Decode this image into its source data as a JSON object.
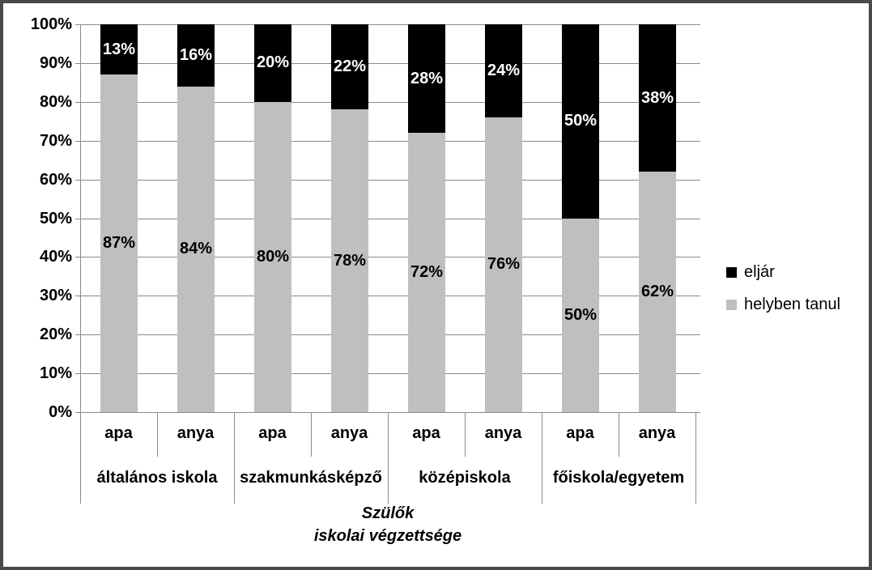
{
  "chart_data": {
    "type": "bar",
    "stacking": "percent",
    "title": "",
    "x_axis_title_lines": [
      "Szülők",
      "iskolai végzettsége"
    ],
    "categories": [
      "általános iskola",
      "szakmunkásképző",
      "középiskola",
      "főiskola/egyetem"
    ],
    "sub_categories": [
      "apa",
      "anya"
    ],
    "series": [
      {
        "name": "eljár",
        "color": "#000000",
        "label_color": "#ffffff",
        "values": [
          13,
          16,
          20,
          22,
          28,
          24,
          50,
          38
        ]
      },
      {
        "name": "helyben tanul",
        "color": "#bfbfbf",
        "label_color": "#000000",
        "values": [
          87,
          84,
          80,
          78,
          72,
          76,
          50,
          62
        ]
      }
    ],
    "y_axis": {
      "min": 0,
      "max": 100,
      "step": 10,
      "tick_suffix": "%"
    },
    "data_label_suffix": "%",
    "legend_position": "right",
    "grid": true
  },
  "colors": {
    "gridline": "#8a8a8a",
    "axis": "#8a8a8a",
    "frame": "#4a4a4a",
    "background": "#ffffff"
  }
}
